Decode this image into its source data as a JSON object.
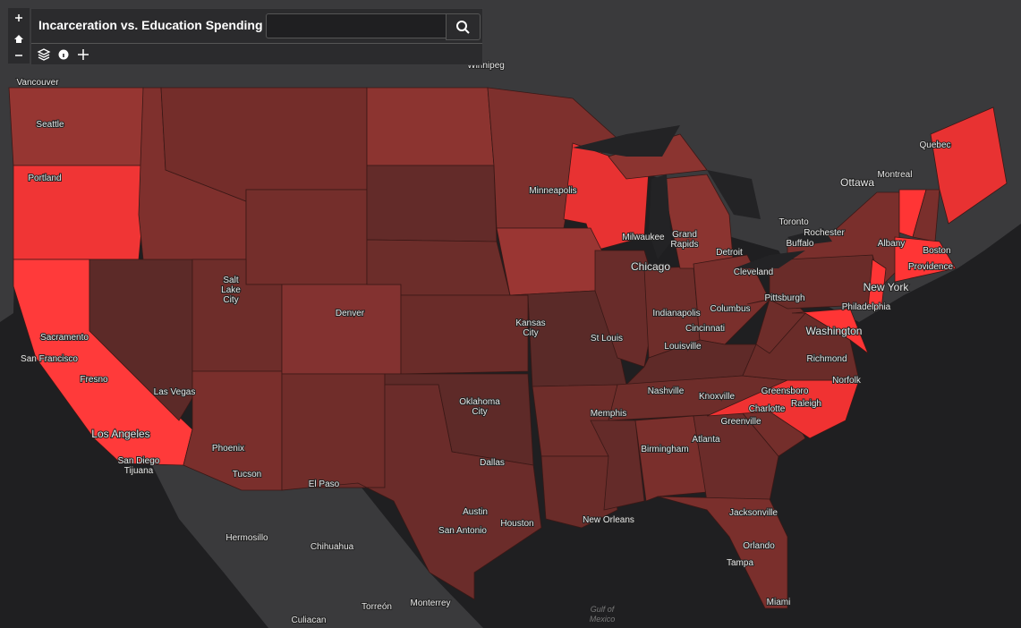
{
  "header": {
    "title": "Incarceration vs. Education Spending"
  },
  "map": {
    "labels": [
      "Vancouver",
      "Seattle",
      "Portland",
      "Winnipeg",
      "Quebec",
      "Montreal",
      "Ottawa",
      "Minneapolis",
      "Toronto",
      "Rochester",
      "Buffalo",
      "Albany",
      "Boston",
      "Providence",
      "Milwaukee",
      [
        "Grand",
        "Rapids"
      ],
      "Detroit",
      "Chicago",
      "Cleveland",
      "New York",
      [
        "Salt",
        "Lake",
        "City"
      ],
      "Pittsburgh",
      "Philadelphia",
      "Denver",
      [
        "Kansas",
        "City"
      ],
      "Indianapolis",
      "Columbus",
      "Cincinnati",
      "Washington",
      "Sacramento",
      "San Francisco",
      "St Louis",
      "Louisville",
      "Richmond",
      "Fresno",
      "Las Vegas",
      "Norfolk",
      [
        "Oklahoma",
        "City"
      ],
      "Nashville",
      "Knoxville",
      "Greensboro",
      "Charlotte",
      "Raleigh",
      "Memphis",
      "Greenville",
      "Los Angeles",
      "Atlanta",
      "Phoenix",
      "Birmingham",
      "San Diego",
      "Tijuana",
      "Dallas",
      "Tucson",
      "El Paso",
      "Austin",
      "Houston",
      "San Antonio",
      "New Orleans",
      "Jacksonville",
      "Hermosillo",
      "Chihuahua",
      "Orlando",
      "Tampa",
      "Miami",
      "Torreón",
      "Monterrey",
      "Culiacan",
      [
        "Gulf of",
        "Mexico"
      ]
    ]
  }
}
